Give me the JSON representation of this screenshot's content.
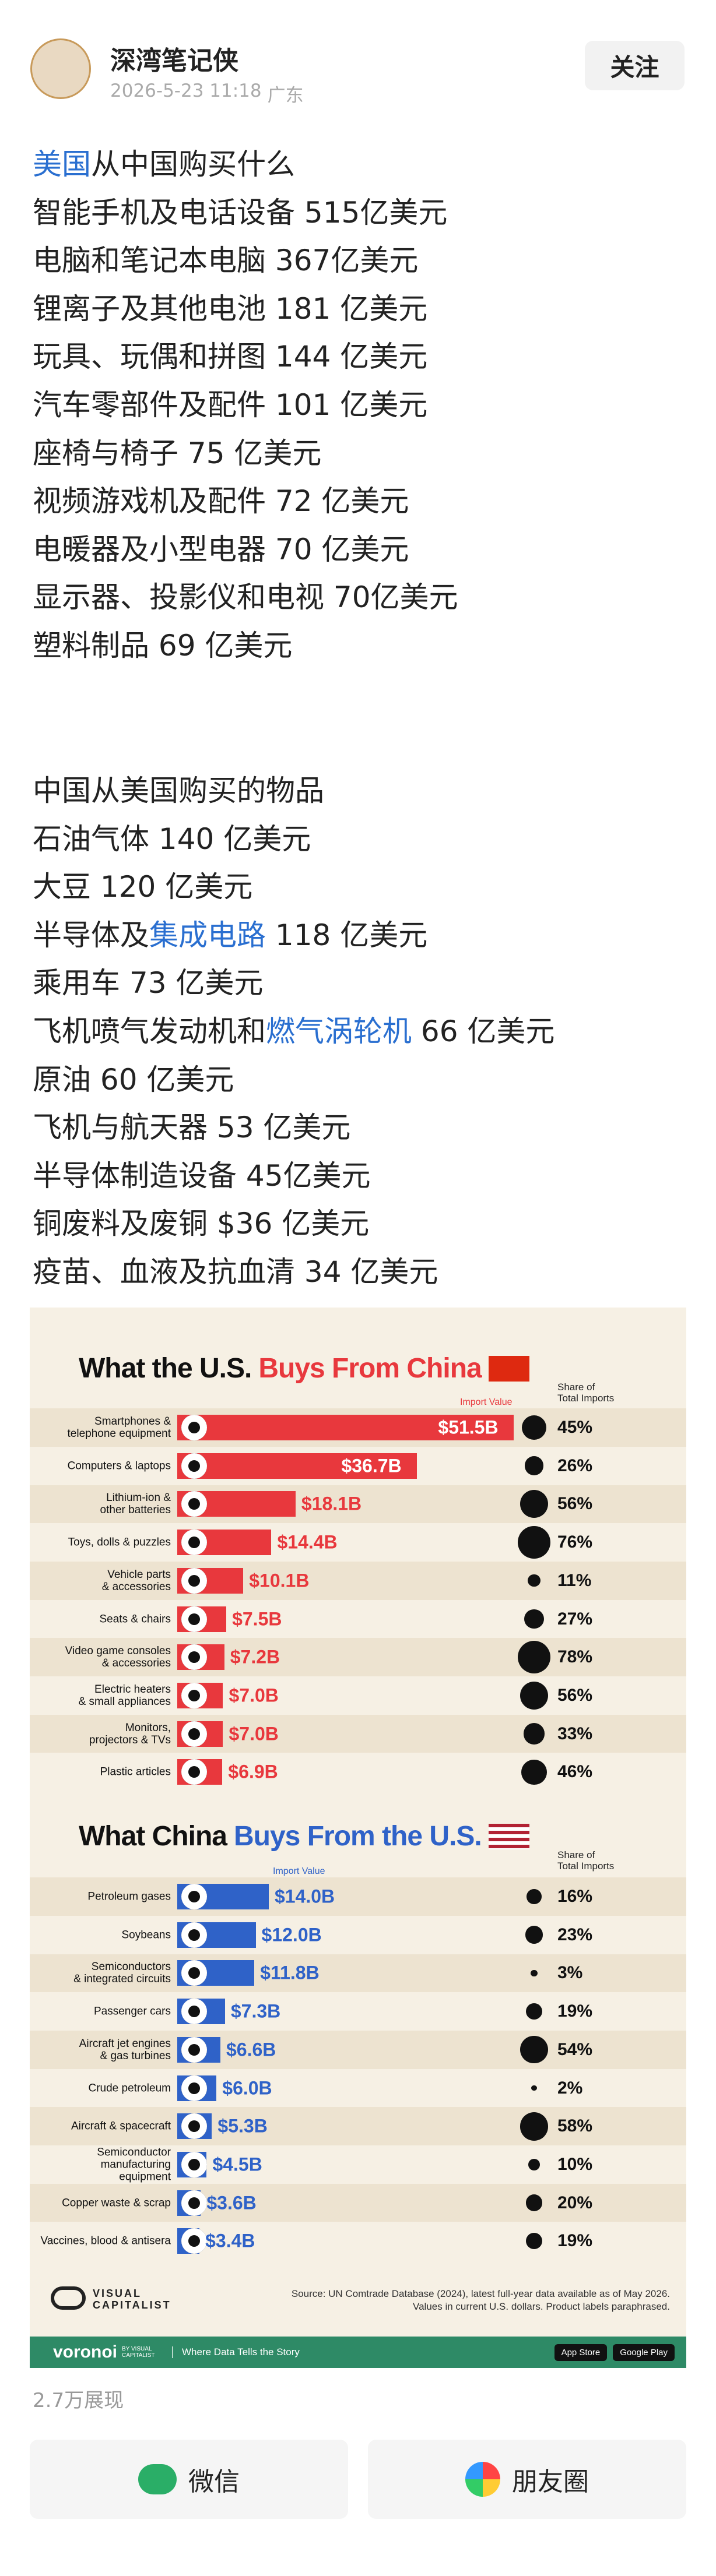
{
  "post": {
    "author": "深湾笔记侠",
    "time": "2026-5-23 11:18",
    "location": "广东",
    "follow": "关注",
    "section_1": [
      [
        {
          "text": "美国",
          "link": true
        },
        {
          "text": "从中国购买什么"
        }
      ],
      "智能手机及电话设备 515亿美元",
      "电脑和笔记本电脑 367亿美元",
      "锂离子及其他电池 181 亿美元",
      "玩具、玩偶和拼图 144 亿美元",
      "汽车零部件及配件 101 亿美元",
      "座椅与椅子 75 亿美元",
      "视频游戏机及配件 72 亿美元",
      "电暖器及小型电器 70 亿美元",
      "显示器、投影仪和电视 70亿美元",
      "塑料制品 69 亿美元"
    ],
    "section_2": [
      "中国从美国购买的物品",
      "石油气体 140 亿美元",
      "大豆 120 亿美元",
      [
        {
          "text": "半导体及"
        },
        {
          "text": "集成电路",
          "link": true
        },
        {
          "text": " 118 亿美元"
        }
      ],
      "乘用车 73 亿美元",
      [
        {
          "text": "飞机喷气发动机和"
        },
        {
          "text": "燃气涡轮机",
          "link": true
        },
        {
          "text": " 66 亿美元"
        }
      ],
      "原油 60 亿美元",
      "飞机与航天器 53 亿美元",
      "半导体制造设备 45亿美元",
      "铜废料及废铜 $36 亿美元",
      "疫苗、血液及抗血清 34 亿美元"
    ]
  },
  "chart_data": [
    {
      "type": "bar",
      "orientation": "horizontal",
      "title_lead": "What the U.S.",
      "title_highlight": "Buys From China",
      "color": "#e8383d",
      "value_title": "Import Value",
      "share_title": [
        "Share of",
        "Total Imports"
      ],
      "categories": [
        "Smartphones &\ntelephone equipment",
        "Computers & laptops",
        "Lithium-ion &\nother batteries",
        "Toys, dolls & puzzles",
        "Vehicle parts\n& accessories",
        "Seats & chairs",
        "Video game consoles\n& accessories",
        "Electric heaters\n& small appliances",
        "Monitors,\nprojectors & TVs",
        "Plastic articles"
      ],
      "values": [
        51.5,
        36.7,
        18.1,
        14.4,
        10.1,
        7.5,
        7.2,
        7.0,
        7.0,
        6.9
      ],
      "value_labels": [
        "$51.5B",
        "$36.7B",
        "$18.1B",
        "$14.4B",
        "$10.1B",
        "$7.5B",
        "$7.2B",
        "$7.0B",
        "$7.0B",
        "$6.9B"
      ],
      "shares": [
        45,
        26,
        56,
        76,
        11,
        27,
        78,
        56,
        33,
        46
      ],
      "share_labels": [
        "45%",
        "26%",
        "56%",
        "76%",
        "11%",
        "27%",
        "78%",
        "56%",
        "33%",
        "46%"
      ],
      "xlim": [
        0,
        52
      ]
    },
    {
      "type": "bar",
      "orientation": "horizontal",
      "title_lead": "What China",
      "title_highlight": "Buys From the U.S.",
      "color": "#2f62c8",
      "value_title": "Import Value",
      "share_title": [
        "Share of",
        "Total Imports"
      ],
      "categories": [
        "Petroleum gases",
        "Soybeans",
        "Semiconductors\n& integrated circuits",
        "Passenger cars",
        "Aircraft jet engines\n& gas turbines",
        "Crude petroleum",
        "Aircraft & spacecraft",
        "Semiconductor\nmanufacturing\nequipment",
        "Copper waste & scrap",
        "Vaccines, blood & antisera"
      ],
      "values": [
        14.0,
        12.0,
        11.8,
        7.3,
        6.6,
        6.0,
        5.3,
        4.5,
        3.6,
        3.4
      ],
      "value_labels": [
        "$14.0B",
        "$12.0B",
        "$11.8B",
        "$7.3B",
        "$6.6B",
        "$6.0B",
        "$5.3B",
        "$4.5B",
        "$3.6B",
        "$3.4B"
      ],
      "shares": [
        16,
        23,
        3,
        19,
        54,
        2,
        58,
        10,
        20,
        19
      ],
      "share_labels": [
        "16%",
        "23%",
        "3%",
        "19%",
        "54%",
        "2%",
        "58%",
        "10%",
        "20%",
        "19%"
      ],
      "xlim": [
        0,
        52
      ]
    }
  ],
  "infographic_footer": {
    "brand_line1": "VISUAL",
    "brand_line2": "CAPITALIST",
    "source": "Source: UN Comtrade Database (2024), latest full-year data available as of May 2026.",
    "note": "Values in current U.S. dollars. Product labels paraphrased.",
    "voronoi": "voronoi",
    "voronoi_sub": "BY VISUAL CAPITALIST",
    "tagline": "Where Data Tells the Story",
    "app_store": "App Store",
    "google_play": "Google Play"
  },
  "footer": {
    "views": "2.7万展现",
    "share_wechat": "微信",
    "share_moments": "朋友圈"
  }
}
